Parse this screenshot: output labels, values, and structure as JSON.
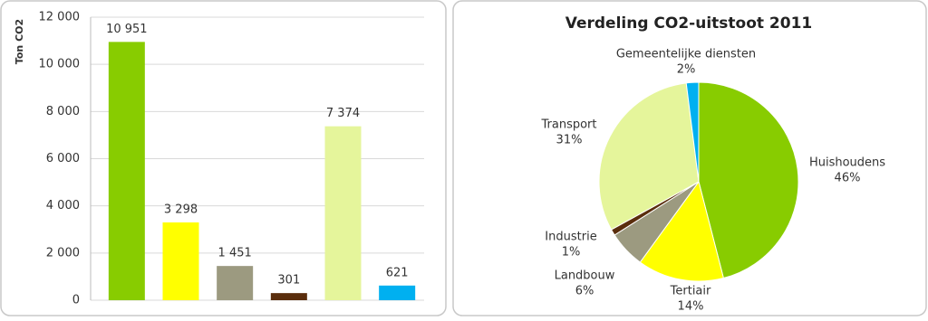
{
  "chart_data": [
    {
      "type": "bar",
      "y_label": "Ton CO2",
      "categories": [
        null,
        null,
        null,
        null,
        null,
        null
      ],
      "values": [
        10951,
        3298,
        1451,
        301,
        7374,
        621
      ],
      "value_labels": [
        "10 951",
        "3 298",
        "1 451",
        "301",
        "7 374",
        "621"
      ],
      "colors": [
        "#88cc00",
        "#ffff00",
        "#9c9a80",
        "#5a2d0c",
        "#e5f59b",
        "#00b0f0"
      ],
      "ylim": [
        0,
        12000
      ],
      "yticks": [
        0,
        {
          "value": 2000,
          "label": "2 000"
        },
        {
          "value": 4000,
          "label": "4 000"
        },
        {
          "value": 6000,
          "label": "6 000"
        },
        {
          "value": 8000,
          "label": "8 000"
        },
        {
          "value": 10000,
          "label": "10 000"
        },
        {
          "value": 12000,
          "label": "12 000"
        }
      ],
      "grid": true
    },
    {
      "type": "pie",
      "title": "Verdeling CO2-uitstoot 2011",
      "categories": [
        "Huishoudens",
        "Tertiair",
        "Landbouw",
        "Industrie",
        "Transport",
        "Gemeentelijke diensten"
      ],
      "values": [
        46,
        14,
        6,
        1,
        31,
        2
      ],
      "value_labels": [
        "46%",
        "14%",
        "6%",
        "1%",
        "31%",
        "2%"
      ],
      "colors": [
        "#88cc00",
        "#ffff00",
        "#9c9a80",
        "#5a2d0c",
        "#e5f59b",
        "#00b0f0"
      ]
    }
  ]
}
